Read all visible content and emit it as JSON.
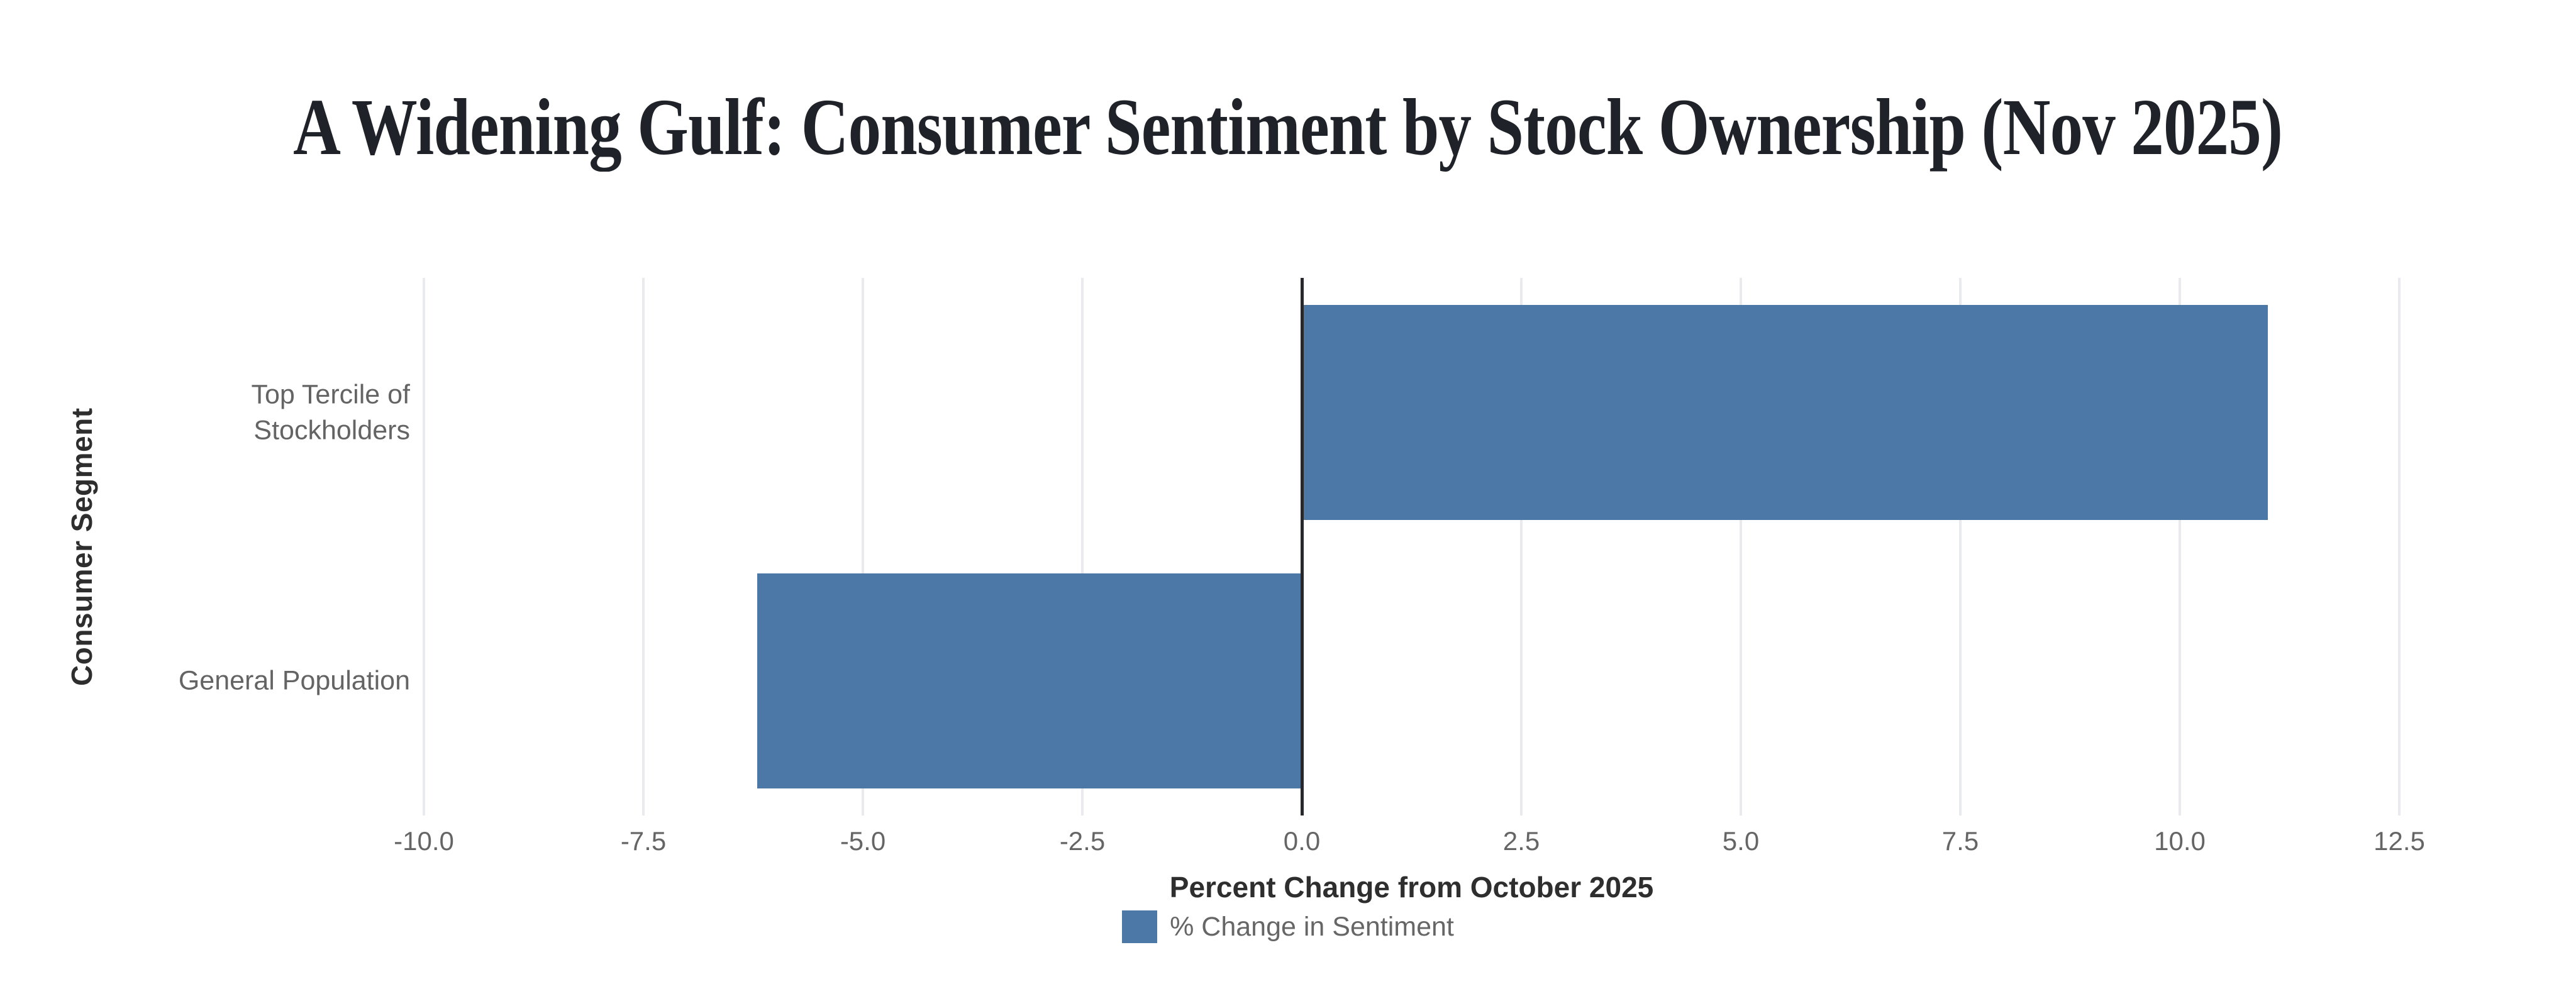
{
  "chart_data": {
    "type": "bar",
    "orientation": "horizontal",
    "title": "A Widening Gulf: Consumer Sentiment by Stock Ownership (Nov 2025)",
    "xlabel": "Percent Change from October 2025",
    "ylabel": "Consumer Segment",
    "categories": [
      "Top Tercile of Stockholders",
      "General Population"
    ],
    "category_label_lines": [
      [
        "Top Tercile of",
        "Stockholders"
      ],
      [
        "General Population"
      ]
    ],
    "values": [
      11.0,
      -6.2
    ],
    "xlim": [
      -10.0,
      12.5
    ],
    "xticks": [
      -10.0,
      -7.5,
      -5.0,
      -2.5,
      0.0,
      2.5,
      5.0,
      7.5,
      10.0,
      12.5
    ],
    "xtick_labels": [
      "-10.0",
      "-7.5",
      "-5.0",
      "-2.5",
      "0.0",
      "2.5",
      "5.0",
      "7.5",
      "10.0",
      "12.5"
    ],
    "grid": true,
    "zero_baseline_shown": true,
    "bar_size": 0.8,
    "legend": {
      "label": "% Change in Sentiment",
      "position": "bottom"
    },
    "colors": {
      "bar": "#4c78a8",
      "grid": "#e8eaee",
      "zero_line": "#26282b",
      "title": "#1f2228",
      "axis_title": "#2e2e2e",
      "tick_text": "#656565",
      "category_text": "#646464",
      "legend_text": "#666666",
      "background": "#ffffff"
    }
  }
}
